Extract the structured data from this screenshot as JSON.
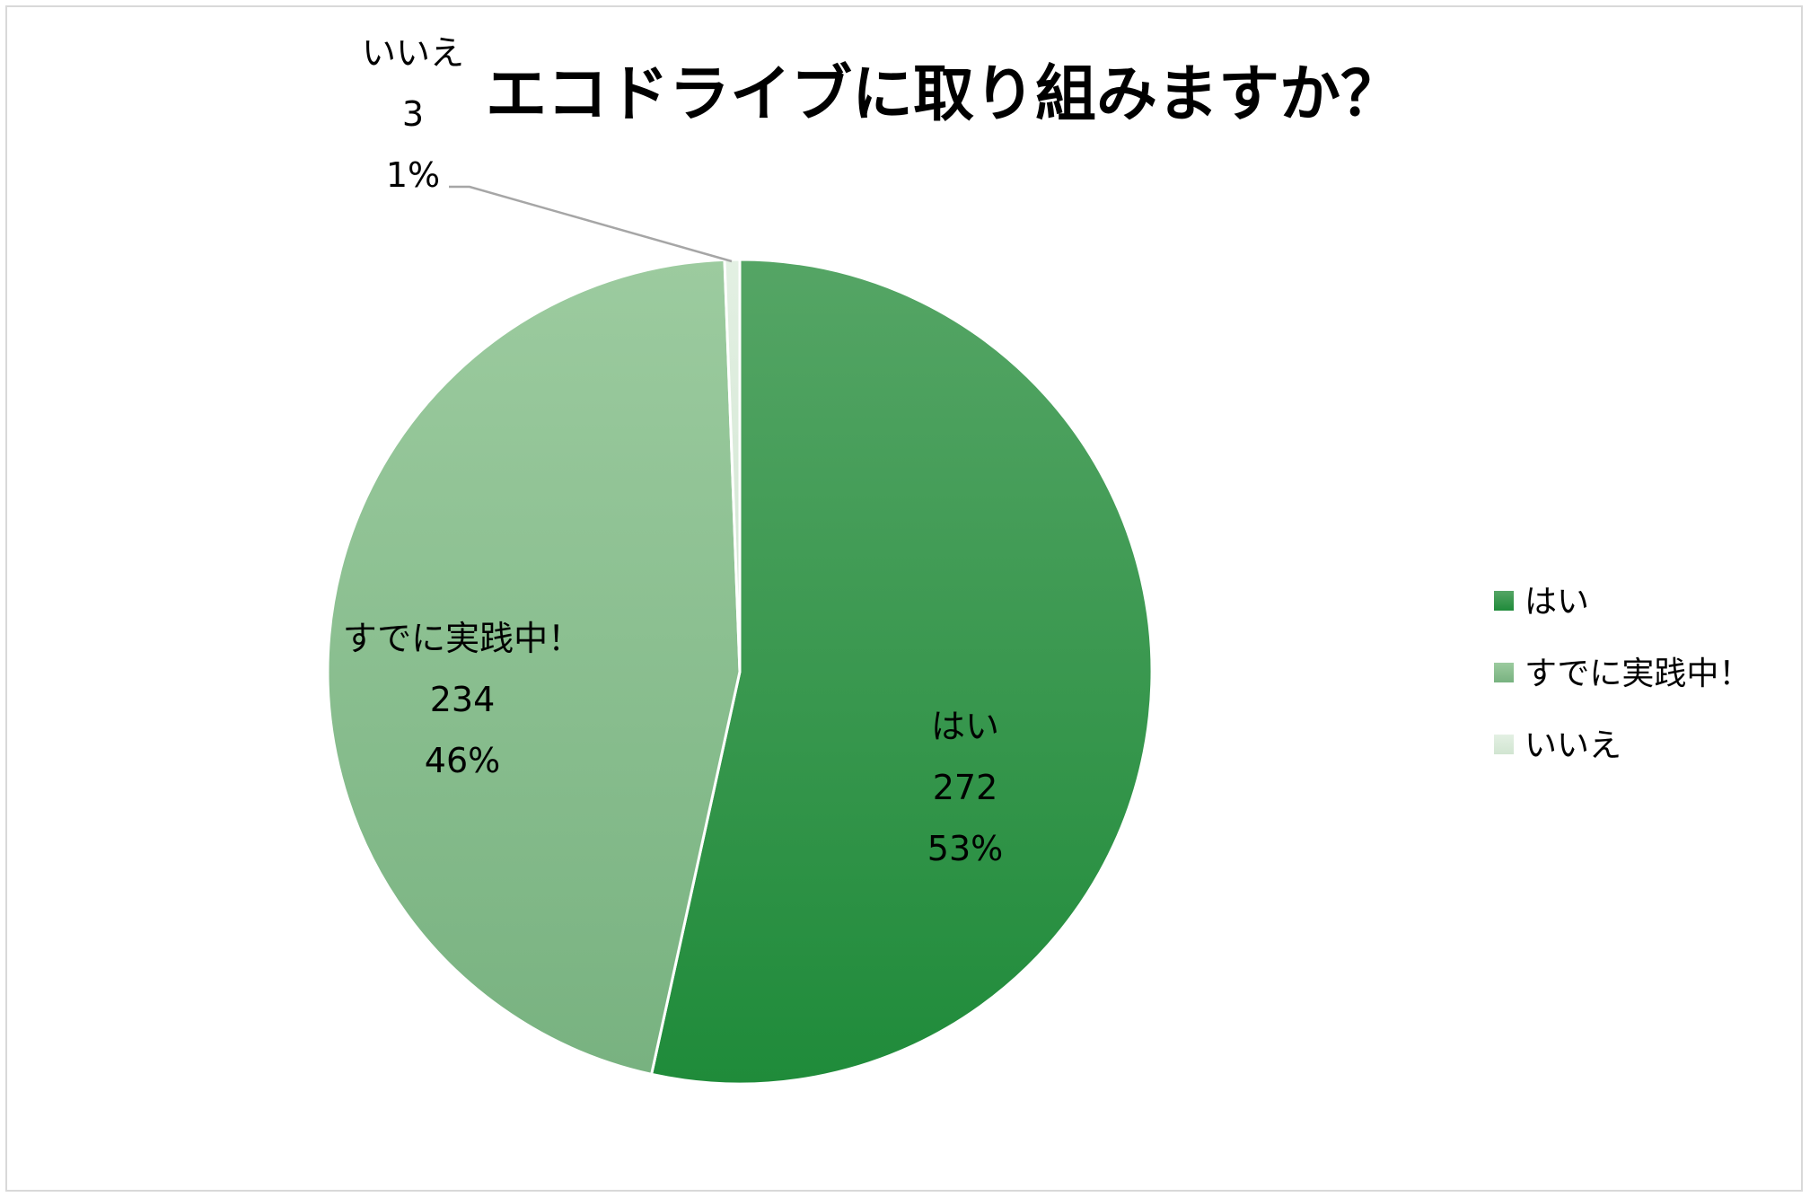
{
  "chart_data": {
    "type": "pie",
    "title": "エコドライブに取り組みますか？",
    "categories": [
      "はい",
      "すでに実践中！",
      "いいえ"
    ],
    "values": [
      272,
      234,
      3
    ],
    "percent_labels": [
      "53%",
      "46%",
      "1%"
    ],
    "value_labels": [
      "272",
      "234",
      "3"
    ],
    "colors": [
      "#229640",
      "#8dc594",
      "#d9ead9"
    ],
    "legend_position": "right",
    "start_angle_deg": 0,
    "direction": "clockwise"
  }
}
